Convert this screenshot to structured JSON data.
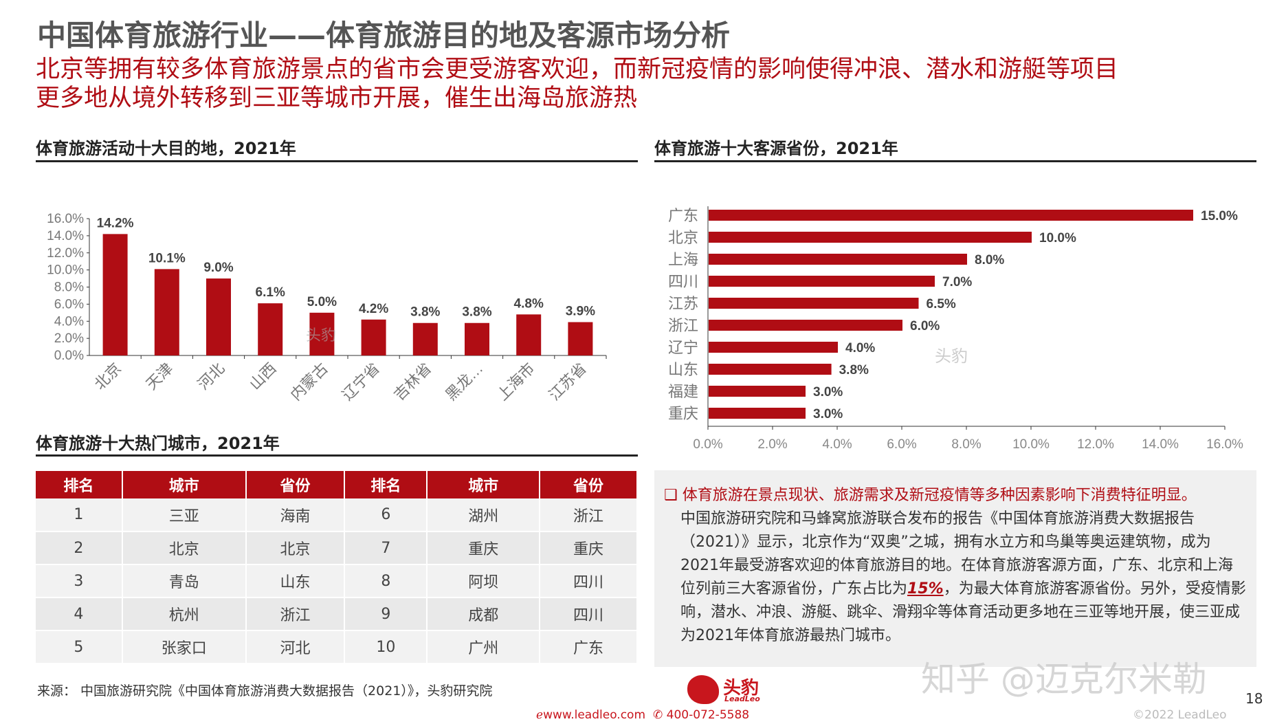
{
  "title": "中国体育旅游行业——体育旅游目的地及客源市场分析",
  "subtitle": [
    "北京等拥有较多体育旅游景点的省市会更受游客欢迎，而新冠疫情的影响使得冲浪、潜水和游艇等项目",
    "更多地从境外转移到三亚等城市开展，催生出海岛旅游热"
  ],
  "sections": {
    "destinations": "体育旅游活动十大目的地，2021年",
    "sources": "体育旅游十大客源省份，2021年",
    "cities": "体育旅游十大热门城市，2021年"
  },
  "chart_data": [
    {
      "type": "bar",
      "categories": [
        "北京",
        "天津",
        "河北",
        "山西",
        "内蒙古",
        "辽宁省",
        "吉林省",
        "黑龙…",
        "上海市",
        "江苏省"
      ],
      "values": [
        14.2,
        10.1,
        9.0,
        6.1,
        5.0,
        4.2,
        3.8,
        3.8,
        4.8,
        3.9
      ],
      "data_labels": [
        "14.2%",
        "10.1%",
        "9.0%",
        "6.1%",
        "5.0%",
        "4.2%",
        "3.8%",
        "3.8%",
        "4.8%",
        "3.9%"
      ],
      "ylim": [
        0,
        16
      ],
      "yticks": [
        "0.0%",
        "2.0%",
        "4.0%",
        "6.0%",
        "8.0%",
        "10.0%",
        "12.0%",
        "14.0%",
        "16.0%"
      ],
      "color": "#b00d14"
    },
    {
      "type": "bar",
      "orientation": "horizontal",
      "categories": [
        "广东",
        "北京",
        "上海",
        "四川",
        "江苏",
        "浙江",
        "辽宁",
        "山东",
        "福建",
        "重庆"
      ],
      "values": [
        15.0,
        10.0,
        8.0,
        7.0,
        6.5,
        6.0,
        4.0,
        3.8,
        3.0,
        3.0
      ],
      "data_labels": [
        "15.0%",
        "10.0%",
        "8.0%",
        "7.0%",
        "6.5%",
        "6.0%",
        "4.0%",
        "3.8%",
        "3.0%",
        "3.0%"
      ],
      "xlim": [
        0,
        16
      ],
      "xticks": [
        "0.0%",
        "2.0%",
        "4.0%",
        "6.0%",
        "8.0%",
        "10.0%",
        "12.0%",
        "14.0%",
        "16.0%"
      ],
      "color": "#b00d14"
    }
  ],
  "table": {
    "headers": [
      "排名",
      "城市",
      "省份",
      "排名",
      "城市",
      "省份"
    ],
    "rows": [
      [
        "1",
        "三亚",
        "海南",
        "6",
        "湖州",
        "浙江"
      ],
      [
        "2",
        "北京",
        "北京",
        "7",
        "重庆",
        "重庆"
      ],
      [
        "3",
        "青岛",
        "山东",
        "8",
        "阿坝",
        "四川"
      ],
      [
        "4",
        "杭州",
        "浙江",
        "9",
        "成都",
        "四川"
      ],
      [
        "5",
        "张家口",
        "河北",
        "10",
        "广州",
        "广东"
      ]
    ]
  },
  "panel": {
    "lead": "体育旅游在景点现状、旅游需求及新冠疫情等多种因素影响下消费特征明显。",
    "body_before": "中国旅游研究院和马蜂窝旅游联合发布的报告《中国体育旅游消费大数据报告（2021）》显示，北京作为“双奥”之城，拥有水立方和鸟巢等奥运建筑物，成为2021年最受游客欢迎的体育旅游目的地。在体育旅游客源方面，广东、北京和上海位列前三大客源省份，广东占比为",
    "highlight": "15%",
    "body_after": "，为最大体育旅游客源省份。另外，受疫情影响，潜水、冲浪、游艇、跳伞、滑翔伞等体育活动更多地在三亚等地开展，使三亚成为2021年体育旅游最热门城市。"
  },
  "footer": {
    "source": "来源：  中国旅游研究院《中国体育旅游消费大数据报告（2021）》，头豹研究院",
    "logo_text": "头豹",
    "logo_sub": "LeadLeo",
    "website": "www.leadleo.com",
    "phone": "400-072-5588",
    "copyright": "©2022 LeadLeo",
    "page": "18"
  },
  "watermarks": {
    "zhihu": "知乎 @迈克尔米勒",
    "toubao": "头豹"
  }
}
